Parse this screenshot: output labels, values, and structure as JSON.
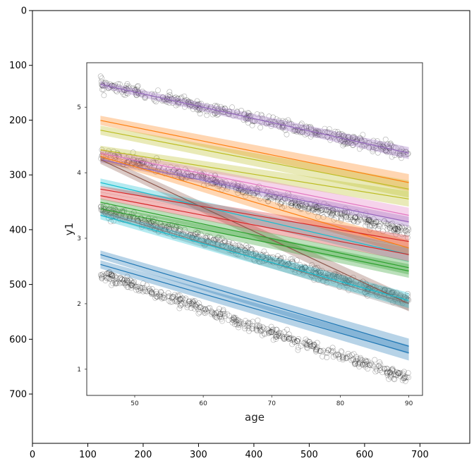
{
  "chart_data": [
    {
      "type": "image-axes",
      "x_ticks": [
        0,
        100,
        200,
        300,
        400,
        500,
        600,
        700
      ],
      "y_ticks": [
        0,
        100,
        200,
        300,
        400,
        500,
        600,
        700
      ],
      "xlim": [
        0,
        790
      ],
      "ylim": [
        790,
        0
      ],
      "grid": false
    },
    {
      "type": "scatter-with-regression-bands",
      "xlabel": "age",
      "ylabel": "y1",
      "x_ticks": [
        50,
        60,
        70,
        80,
        90
      ],
      "y_ticks": [
        1,
        2,
        3,
        4,
        5
      ],
      "xlim": [
        43,
        92
      ],
      "ylim": [
        0.6,
        5.68
      ],
      "point_clusters": [
        {
          "x": [
            45,
            90
          ],
          "y": [
            5.35,
            4.3
          ],
          "n": 420
        },
        {
          "x": [
            45,
            90
          ],
          "y": [
            4.3,
            3.1
          ],
          "n": 520
        },
        {
          "x": [
            45,
            90
          ],
          "y": [
            3.45,
            2.05
          ],
          "n": 520
        },
        {
          "x": [
            45,
            90
          ],
          "y": [
            2.45,
            0.85
          ],
          "n": 480
        }
      ],
      "series": [
        {
          "color": "#9467bd",
          "x": [
            45,
            90
          ],
          "y": [
            5.35,
            4.3
          ],
          "band": 0.07
        },
        {
          "color": "#ff7f0e",
          "x": [
            45,
            90
          ],
          "y": [
            4.8,
            3.85
          ],
          "band": 0.1
        },
        {
          "color": "#bcbd22",
          "x": [
            45,
            90
          ],
          "y": [
            4.65,
            3.75
          ],
          "band": 0.1
        },
        {
          "color": "#bcbd22",
          "x": [
            45,
            90
          ],
          "y": [
            4.35,
            3.6
          ],
          "band": 0.09
        },
        {
          "color": "#e377c2",
          "x": [
            45,
            90
          ],
          "y": [
            4.3,
            3.35
          ],
          "band": 0.09
        },
        {
          "color": "#9467bd",
          "x": [
            45,
            90
          ],
          "y": [
            4.2,
            3.25
          ],
          "band": 0.06
        },
        {
          "color": "#ff7f0e",
          "x": [
            45,
            90
          ],
          "y": [
            4.25,
            2.85
          ],
          "band": 0.09
        },
        {
          "color": "#8c564b",
          "x": [
            45,
            90
          ],
          "y": [
            4.2,
            2.0
          ],
          "band": 0.09
        },
        {
          "color": "#17becf",
          "x": [
            45,
            90
          ],
          "y": [
            3.85,
            2.75
          ],
          "band": 0.09
        },
        {
          "color": "#d62728",
          "x": [
            45,
            90
          ],
          "y": [
            3.75,
            2.95
          ],
          "band": 0.07
        },
        {
          "color": "#d62728",
          "x": [
            45,
            90
          ],
          "y": [
            3.65,
            2.75
          ],
          "band": 0.08
        },
        {
          "color": "#2ca02c",
          "x": [
            45,
            90
          ],
          "y": [
            3.55,
            2.55
          ],
          "band": 0.08
        },
        {
          "color": "#2ca02c",
          "x": [
            45,
            90
          ],
          "y": [
            3.45,
            2.5
          ],
          "band": 0.08
        },
        {
          "color": "#7f7f7f",
          "x": [
            45,
            90
          ],
          "y": [
            3.4,
            2.0
          ],
          "band": 0.08
        },
        {
          "color": "#17becf",
          "x": [
            45,
            90
          ],
          "y": [
            3.35,
            2.05
          ],
          "band": 0.09
        },
        {
          "color": "#1f77b4",
          "x": [
            45,
            90
          ],
          "y": [
            2.75,
            1.35
          ],
          "band": 0.09
        },
        {
          "color": "#1f77b4",
          "x": [
            45,
            90
          ],
          "y": [
            2.6,
            1.25
          ],
          "band": 0.09
        }
      ]
    }
  ]
}
